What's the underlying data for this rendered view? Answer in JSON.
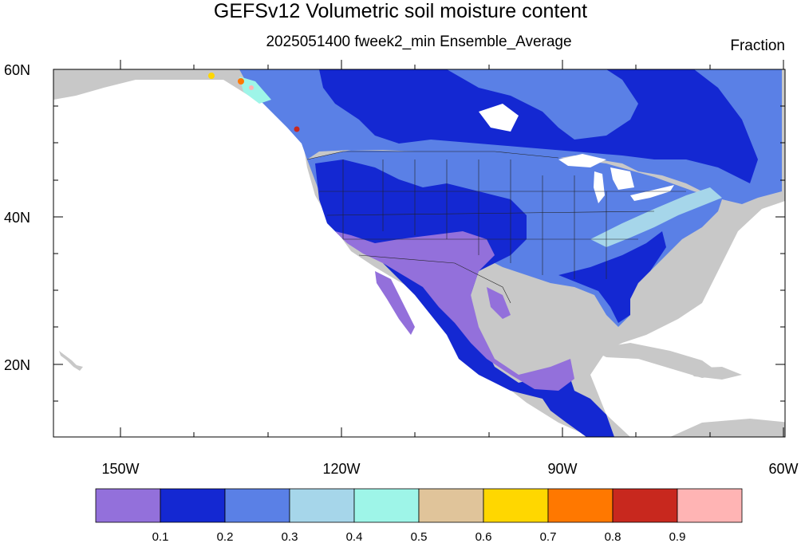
{
  "title": "GEFSv12 Volumetric soil moisture content",
  "subtitle": "2025051400 fweek2_min Ensemble_Average",
  "units": "Fraction",
  "map": {
    "lat_range": [
      10,
      60
    ],
    "lon_range": [
      -160,
      -60
    ],
    "y_ticks": [
      "60N",
      "40N",
      "20N"
    ],
    "x_ticks": [
      "150W",
      "120W",
      "90W",
      "60W"
    ]
  },
  "legend": {
    "colors": [
      "#9370DB",
      "#1428D2",
      "#5A80E6",
      "#A6D6EA",
      "#9EF5E8",
      "#E0C49A",
      "#FFD700",
      "#FF7800",
      "#C8281E",
      "#FFB4B4"
    ],
    "labels": [
      "0.1",
      "0.2",
      "0.3",
      "0.4",
      "0.5",
      "0.6",
      "0.7",
      "0.8",
      "0.9"
    ]
  },
  "colors": {
    "land_missing": "#c8c8c8",
    "ocean": "#ffffff",
    "frame": "#000000"
  }
}
